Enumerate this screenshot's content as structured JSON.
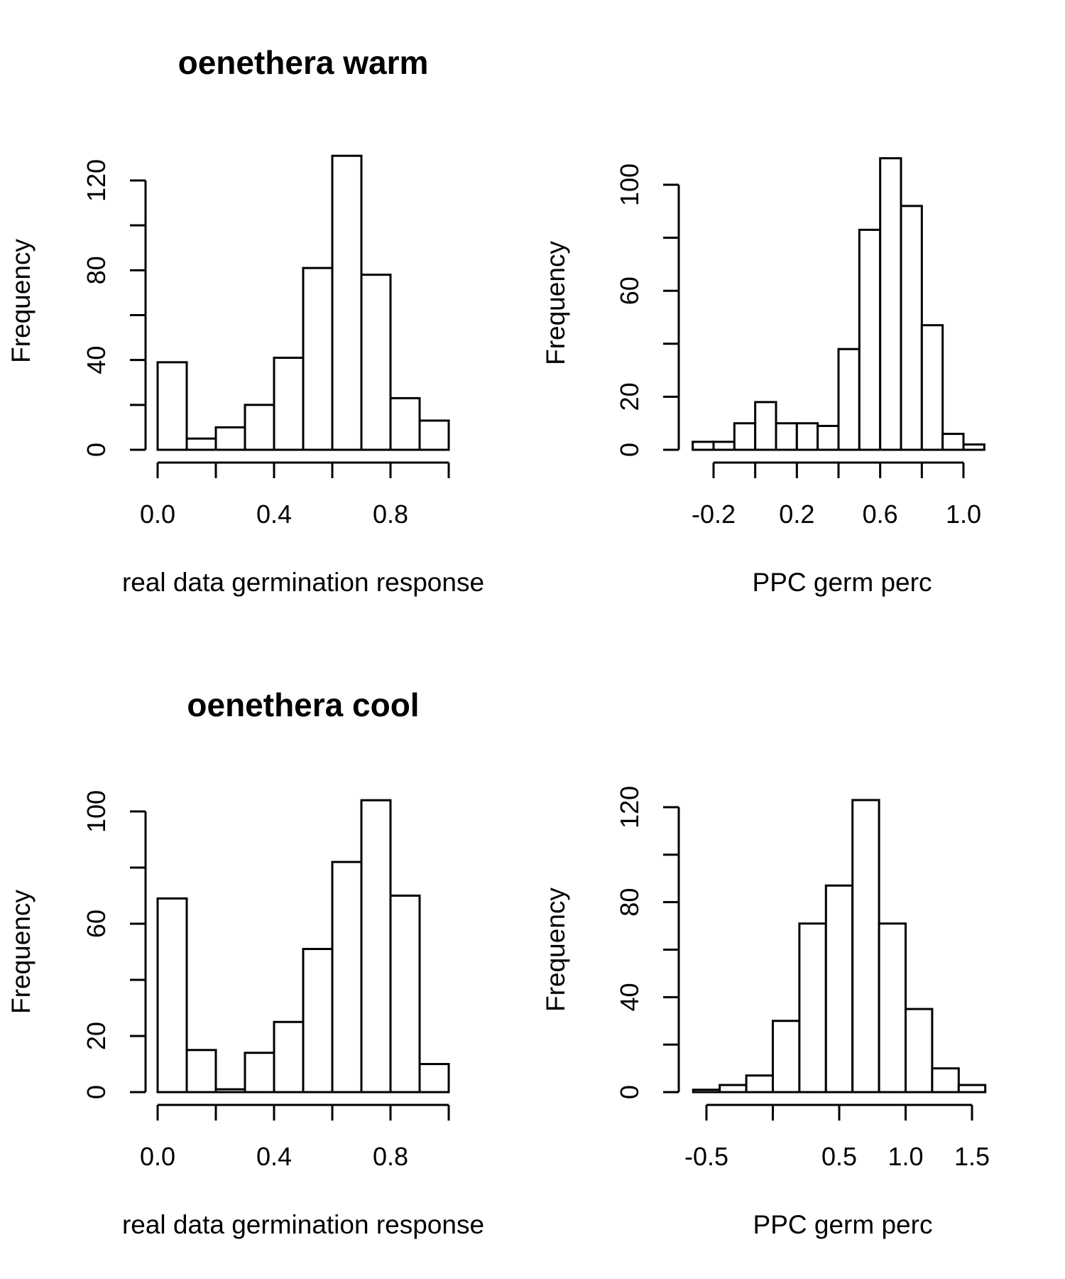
{
  "chart_data": [
    {
      "type": "bar",
      "subtype": "histogram",
      "title": "oenethera warm",
      "xlabel": "real data germination response",
      "ylabel": "Frequency",
      "bin_edges": [
        0.0,
        0.1,
        0.2,
        0.3,
        0.4,
        0.5,
        0.6,
        0.7,
        0.8,
        0.9,
        1.0
      ],
      "values": [
        39,
        5,
        10,
        20,
        41,
        81,
        131,
        78,
        23,
        13
      ],
      "xticks": [
        0.0,
        0.2,
        0.4,
        0.6,
        0.8,
        1.0
      ],
      "xtick_labels": [
        "0.0",
        "",
        "0.4",
        "",
        "0.8",
        ""
      ],
      "yticks": [
        0,
        20,
        40,
        60,
        80,
        100,
        120
      ],
      "ytick_labels": [
        "0",
        "",
        "40",
        "",
        "80",
        "",
        "120"
      ],
      "grid": false,
      "color": "#ffffff",
      "edge_color": "#000000"
    },
    {
      "type": "bar",
      "subtype": "histogram",
      "title": "",
      "xlabel": "PPC germ perc",
      "ylabel": "Frequency",
      "bin_edges": [
        -0.3,
        -0.2,
        -0.1,
        0.0,
        0.1,
        0.2,
        0.3,
        0.4,
        0.5,
        0.6,
        0.7,
        0.8,
        0.9,
        1.0,
        1.1
      ],
      "values": [
        3,
        3,
        10,
        18,
        10,
        10,
        9,
        38,
        83,
        110,
        92,
        47,
        6,
        2
      ],
      "xticks": [
        -0.2,
        0.0,
        0.2,
        0.4,
        0.6,
        0.8,
        1.0
      ],
      "xtick_labels": [
        "-0.2",
        "",
        "0.2",
        "",
        "0.6",
        "",
        "1.0"
      ],
      "yticks": [
        0,
        20,
        40,
        60,
        80,
        100
      ],
      "ytick_labels": [
        "0",
        "20",
        "",
        "60",
        "",
        "100"
      ],
      "grid": false,
      "color": "#ffffff",
      "edge_color": "#000000"
    },
    {
      "type": "bar",
      "subtype": "histogram",
      "title": "oenethera cool",
      "xlabel": "real data germination response",
      "ylabel": "Frequency",
      "bin_edges": [
        0.0,
        0.1,
        0.2,
        0.3,
        0.4,
        0.5,
        0.6,
        0.7,
        0.8,
        0.9,
        1.0
      ],
      "values": [
        69,
        15,
        1,
        14,
        25,
        51,
        82,
        104,
        70,
        10
      ],
      "xticks": [
        0.0,
        0.2,
        0.4,
        0.6,
        0.8,
        1.0
      ],
      "xtick_labels": [
        "0.0",
        "",
        "0.4",
        "",
        "0.8",
        ""
      ],
      "yticks": [
        0,
        20,
        40,
        60,
        80,
        100
      ],
      "ytick_labels": [
        "0",
        "20",
        "",
        "60",
        "",
        "100"
      ],
      "grid": false,
      "color": "#ffffff",
      "edge_color": "#000000"
    },
    {
      "type": "bar",
      "subtype": "histogram",
      "title": "",
      "xlabel": "PPC germ perc",
      "ylabel": "Frequency",
      "bin_edges": [
        -0.6,
        -0.4,
        -0.2,
        0.0,
        0.2,
        0.4,
        0.6,
        0.8,
        1.0,
        1.2,
        1.4,
        1.6
      ],
      "values": [
        1,
        3,
        7,
        30,
        71,
        87,
        123,
        71,
        35,
        10,
        3
      ],
      "xticks": [
        -0.5,
        0.0,
        0.5,
        1.0,
        1.5
      ],
      "xtick_labels": [
        "-0.5",
        "",
        "0.5",
        "1.0",
        "1.5"
      ],
      "yticks": [
        0,
        20,
        40,
        60,
        80,
        100,
        120
      ],
      "ytick_labels": [
        "0",
        "",
        "40",
        "",
        "80",
        "",
        "120"
      ],
      "grid": false,
      "color": "#ffffff",
      "edge_color": "#000000"
    }
  ]
}
